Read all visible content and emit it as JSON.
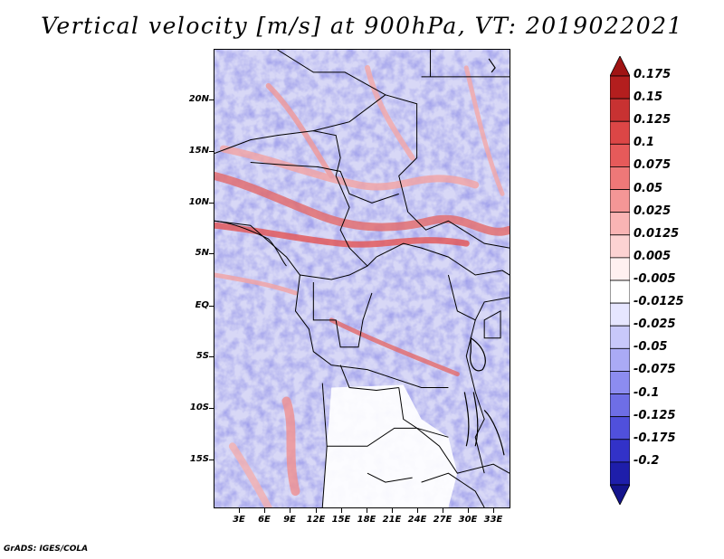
{
  "title": "Vertical velocity [m/s] at 900hPa, VT: 2019022021",
  "credit": "GrADS: IGES/COLA",
  "axes": {
    "lat_labels": [
      "20N",
      "15N",
      "10N",
      "5N",
      "EQ",
      "5S",
      "10S",
      "15S"
    ],
    "lon_labels": [
      "3E",
      "6E",
      "9E",
      "12E",
      "15E",
      "18E",
      "21E",
      "24E",
      "27E",
      "30E",
      "33E"
    ]
  },
  "colorbar": {
    "labels": [
      "0.175",
      "0.15",
      "0.125",
      "0.1",
      "0.075",
      "0.05",
      "0.025",
      "0.0125",
      "0.005",
      "-0.005",
      "-0.0125",
      "-0.025",
      "-0.05",
      "-0.075",
      "-0.1",
      "-0.125",
      "-0.175",
      "-0.2"
    ],
    "colors": [
      "#b31e1e",
      "#c83232",
      "#dc4646",
      "#e65a5a",
      "#ee7878",
      "#f49696",
      "#f9b4b4",
      "#fcd2d2",
      "#fff0f0",
      "#ffffff",
      "#e6e6ff",
      "#c8c8fa",
      "#aaaaf5",
      "#8c8cf0",
      "#6e6ee6",
      "#5050dc",
      "#3232c8",
      "#1e1eaa"
    ],
    "top_arrow_color": "#a01414",
    "bottom_arrow_color": "#14148c"
  }
}
